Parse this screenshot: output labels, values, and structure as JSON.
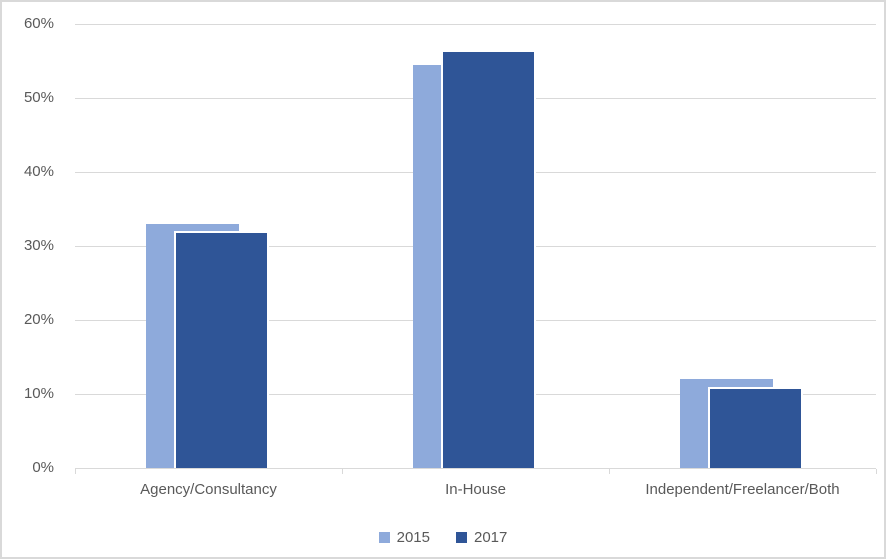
{
  "chart_data": {
    "type": "bar",
    "title": "",
    "categories": [
      "Agency/Consultancy",
      "In-House",
      "Independent/Freelancer/Both"
    ],
    "series": [
      {
        "name": "2015",
        "color": "#8EAADB",
        "values": [
          33,
          54.5,
          12
        ]
      },
      {
        "name": "2017",
        "color": "#2F5597",
        "values": [
          32,
          56.5,
          11
        ]
      }
    ],
    "y_axis": {
      "unit": "%",
      "min": 0,
      "max": 60,
      "tick_values": [
        60,
        50,
        40,
        30,
        20,
        10,
        0
      ],
      "tick_labels": [
        "60%",
        "50%",
        "40%",
        "30%",
        "20%",
        "10%",
        "0%"
      ],
      "grid": true
    },
    "legend": {
      "position": "bottom",
      "entries": [
        "2015",
        "2017"
      ]
    },
    "colors": {
      "series_2015": "#8EAADB",
      "series_2017": "#2F5597",
      "gridline": "#D9D9D9",
      "axis_text": "#595959",
      "chart_border": "#D9D9D9",
      "background": "#FFFFFF",
      "bar_outline": "#FFFFFF"
    }
  }
}
